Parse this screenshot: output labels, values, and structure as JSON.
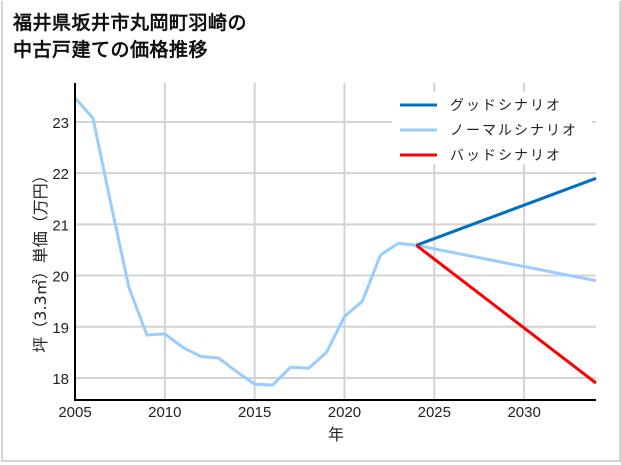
{
  "title_lines": [
    "福井県坂井市丸岡町羽崎の",
    "中古戸建ての価格推移"
  ],
  "chart_data": {
    "type": "line",
    "title": "福井県坂井市丸岡町羽崎の中古戸建ての価格推移",
    "xlabel": "年",
    "ylabel": "坪（3.3㎡）単価（万円）",
    "xlim": [
      2005,
      2034
    ],
    "ylim": [
      17.57,
      23.76
    ],
    "xticks": [
      2005,
      2010,
      2015,
      2020,
      2025,
      2030
    ],
    "yticks": [
      18,
      19,
      20,
      21,
      22,
      23
    ],
    "grid": true,
    "legend_position": "upper right",
    "series": [
      {
        "name": "グッドシナリオ",
        "color": "#0070c0",
        "x": [
          2024,
          2034
        ],
        "values": [
          20.59,
          21.9
        ]
      },
      {
        "name": "ノーマルシナリオ",
        "color": "#99ccff",
        "x": [
          2005,
          2006,
          2007,
          2008,
          2009,
          2010,
          2011,
          2012,
          2013,
          2014,
          2015,
          2016,
          2017,
          2018,
          2019,
          2020,
          2021,
          2022,
          2023,
          2024,
          2034
        ],
        "values": [
          23.47,
          23.07,
          21.4,
          19.77,
          18.84,
          18.86,
          18.6,
          18.42,
          18.39,
          18.12,
          17.88,
          17.86,
          18.21,
          18.19,
          18.5,
          19.2,
          19.5,
          20.4,
          20.63,
          20.59,
          19.9
        ]
      },
      {
        "name": "バッドシナリオ",
        "color": "#ff0000",
        "x": [
          2024,
          2034
        ],
        "values": [
          20.59,
          17.9
        ]
      }
    ]
  },
  "legend": [
    {
      "label": "グッドシナリオ",
      "color": "#0070c0"
    },
    {
      "label": "ノーマルシナリオ",
      "color": "#99ccff"
    },
    {
      "label": "バッドシナリオ",
      "color": "#ff0000"
    }
  ],
  "colors": {
    "grid": "#d3d3d3",
    "axis": "#000000",
    "frame": "#d4d4d4"
  }
}
